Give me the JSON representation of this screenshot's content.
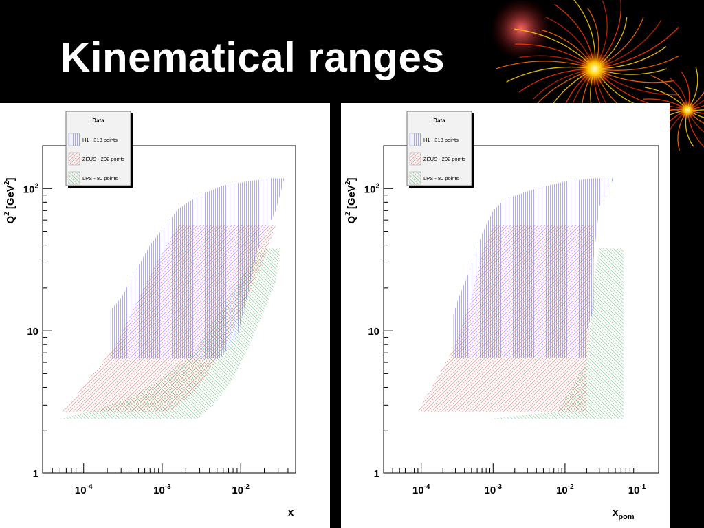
{
  "slide": {
    "title": "Kinematical ranges"
  },
  "decor": {
    "name": "fireworks-decoration",
    "colors": [
      "#ffcc00",
      "#ff6600",
      "#cc2200",
      "#ff3300"
    ]
  },
  "colors": {
    "H1": "#6666dd",
    "ZEUS": "#e07070",
    "LPS": "#66bb77",
    "frame": "#000000"
  },
  "chart_data": [
    {
      "type": "area",
      "ylabel": "Q^2 [GeV^2]",
      "ylabel_parts": {
        "base": "Q",
        "sup1": "2",
        "bracket": " [GeV",
        "sup2": "2",
        "close": "]"
      },
      "xlabel": "x",
      "xlabel_parts": {
        "base": "x",
        "sub": ""
      },
      "x_scale": "log",
      "y_scale": "log",
      "xlim": [
        3e-05,
        0.05
      ],
      "ylim": [
        1,
        200
      ],
      "grid": false,
      "x_ticks": [
        {
          "value": 0.0001,
          "base": "10",
          "exp": "-4"
        },
        {
          "value": 0.001,
          "base": "10",
          "exp": "-3"
        },
        {
          "value": 0.01,
          "base": "10",
          "exp": "-2"
        }
      ],
      "y_ticks": [
        {
          "value": 1,
          "label": "1",
          "exp": ""
        },
        {
          "value": 10,
          "label": "10",
          "exp": ""
        },
        {
          "value": 100,
          "label": "10",
          "exp": "2"
        }
      ],
      "legend": {
        "title": "Data",
        "placement": "top-left",
        "entries": [
          {
            "label": "H1 - 313 points",
            "series": "H1"
          },
          {
            "label": "ZEUS - 202 points",
            "series": "ZEUS"
          },
          {
            "label": "LPS - 80 points",
            "series": "LPS"
          }
        ]
      },
      "series": [
        {
          "name": "H1",
          "hatch": "vertical",
          "polygon": [
            [
              0.00022,
              6.4
            ],
            [
              0.0013,
              6.4
            ],
            [
              0.0013,
              6.4
            ],
            [
              0.0055,
              6.4
            ],
            [
              0.009,
              9
            ],
            [
              0.012,
              17
            ],
            [
              0.016,
              35
            ],
            [
              0.02,
              48
            ],
            [
              0.028,
              70
            ],
            [
              0.036,
              118
            ],
            [
              0.024,
              118
            ],
            [
              0.012,
              112
            ],
            [
              0.006,
              105
            ],
            [
              0.003,
              90
            ],
            [
              0.0016,
              72
            ],
            [
              0.0011,
              55
            ],
            [
              0.0007,
              40
            ],
            [
              0.00045,
              26
            ],
            [
              0.0003,
              17
            ],
            [
              0.00022,
              14
            ]
          ]
        },
        {
          "name": "ZEUS",
          "hatch": "diagonal-ne",
          "polygon": [
            [
              5e-05,
              2.7
            ],
            [
              0.0012,
              2.7
            ],
            [
              0.0025,
              3.6
            ],
            [
              0.0045,
              5.8
            ],
            [
              0.008,
              10
            ],
            [
              0.012,
              17
            ],
            [
              0.018,
              28
            ],
            [
              0.028,
              55
            ],
            [
              0.013,
              55
            ],
            [
              0.006,
              55
            ],
            [
              0.0016,
              55
            ],
            [
              0.00085,
              30
            ],
            [
              0.00045,
              15
            ],
            [
              0.00025,
              7.7
            ],
            [
              0.00015,
              5.5
            ],
            [
              8e-05,
              3.5
            ]
          ]
        },
        {
          "name": "LPS",
          "hatch": "diagonal-nw",
          "polygon": [
            [
              5e-05,
              2.4
            ],
            [
              0.0028,
              2.4
            ],
            [
              0.0045,
              3
            ],
            [
              0.008,
              4.6
            ],
            [
              0.013,
              8
            ],
            [
              0.02,
              14
            ],
            [
              0.028,
              22
            ],
            [
              0.032,
              38
            ],
            [
              0.018,
              38
            ],
            [
              0.011,
              25
            ],
            [
              0.006,
              15
            ],
            [
              0.0025,
              7
            ],
            [
              0.001,
              4.6
            ],
            [
              0.0004,
              3.4
            ],
            [
              0.00015,
              2.8
            ]
          ]
        }
      ]
    },
    {
      "type": "area",
      "ylabel": "Q^2 [GeV^2]",
      "ylabel_parts": {
        "base": "Q",
        "sup1": "2",
        "bracket": " [GeV",
        "sup2": "2",
        "close": "]"
      },
      "xlabel": "x_pom",
      "xlabel_parts": {
        "base": "x",
        "sub": "pom"
      },
      "x_scale": "log",
      "y_scale": "log",
      "xlim": [
        3e-05,
        0.2
      ],
      "ylim": [
        1,
        200
      ],
      "grid": false,
      "x_ticks": [
        {
          "value": 0.0001,
          "base": "10",
          "exp": "-4"
        },
        {
          "value": 0.001,
          "base": "10",
          "exp": "-3"
        },
        {
          "value": 0.01,
          "base": "10",
          "exp": "-2"
        },
        {
          "value": 0.1,
          "base": "10",
          "exp": "-1"
        }
      ],
      "y_ticks": [
        {
          "value": 1,
          "label": "1",
          "exp": ""
        },
        {
          "value": 10,
          "label": "10",
          "exp": ""
        },
        {
          "value": 100,
          "label": "10",
          "exp": "2"
        }
      ],
      "legend": {
        "title": "Data",
        "placement": "top-left",
        "entries": [
          {
            "label": "H1 - 313 points",
            "series": "H1"
          },
          {
            "label": "ZEUS - 202 points",
            "series": "ZEUS"
          },
          {
            "label": "LPS - 80 points",
            "series": "LPS"
          }
        ]
      },
      "series": [
        {
          "name": "H1",
          "hatch": "vertical",
          "polygon": [
            [
              0.00028,
              6.5
            ],
            [
              0.02,
              6.5
            ],
            [
              0.02,
              10
            ],
            [
              0.025,
              14
            ],
            [
              0.025,
              32
            ],
            [
              0.03,
              75
            ],
            [
              0.048,
              118
            ],
            [
              0.025,
              118
            ],
            [
              0.01,
              112
            ],
            [
              0.004,
              100
            ],
            [
              0.0015,
              85
            ],
            [
              0.001,
              70
            ],
            [
              0.0007,
              48
            ],
            [
              0.00045,
              25
            ],
            [
              0.00033,
              17
            ],
            [
              0.00028,
              13
            ]
          ]
        },
        {
          "name": "ZEUS",
          "hatch": "diagonal-ne",
          "polygon": [
            [
              9e-05,
              2.7
            ],
            [
              0.02,
              2.7
            ],
            [
              0.02,
              6
            ],
            [
              0.022,
              10
            ],
            [
              0.022,
              22
            ],
            [
              0.025,
              55
            ],
            [
              0.012,
              55
            ],
            [
              0.005,
              55
            ],
            [
              0.001,
              55
            ],
            [
              0.0007,
              35
            ],
            [
              0.0005,
              17
            ],
            [
              0.0003,
              8
            ],
            [
              0.00018,
              5
            ],
            [
              0.00012,
              3.5
            ]
          ]
        },
        {
          "name": "LPS",
          "hatch": "diagonal-nw",
          "polygon": [
            [
              0.0009,
              2.4
            ],
            [
              0.065,
              2.4
            ],
            [
              0.065,
              38
            ],
            [
              0.045,
              38
            ],
            [
              0.03,
              38
            ],
            [
              0.025,
              22
            ],
            [
              0.022,
              10
            ],
            [
              0.02,
              6
            ],
            [
              0.008,
              2.7
            ]
          ]
        }
      ]
    }
  ]
}
